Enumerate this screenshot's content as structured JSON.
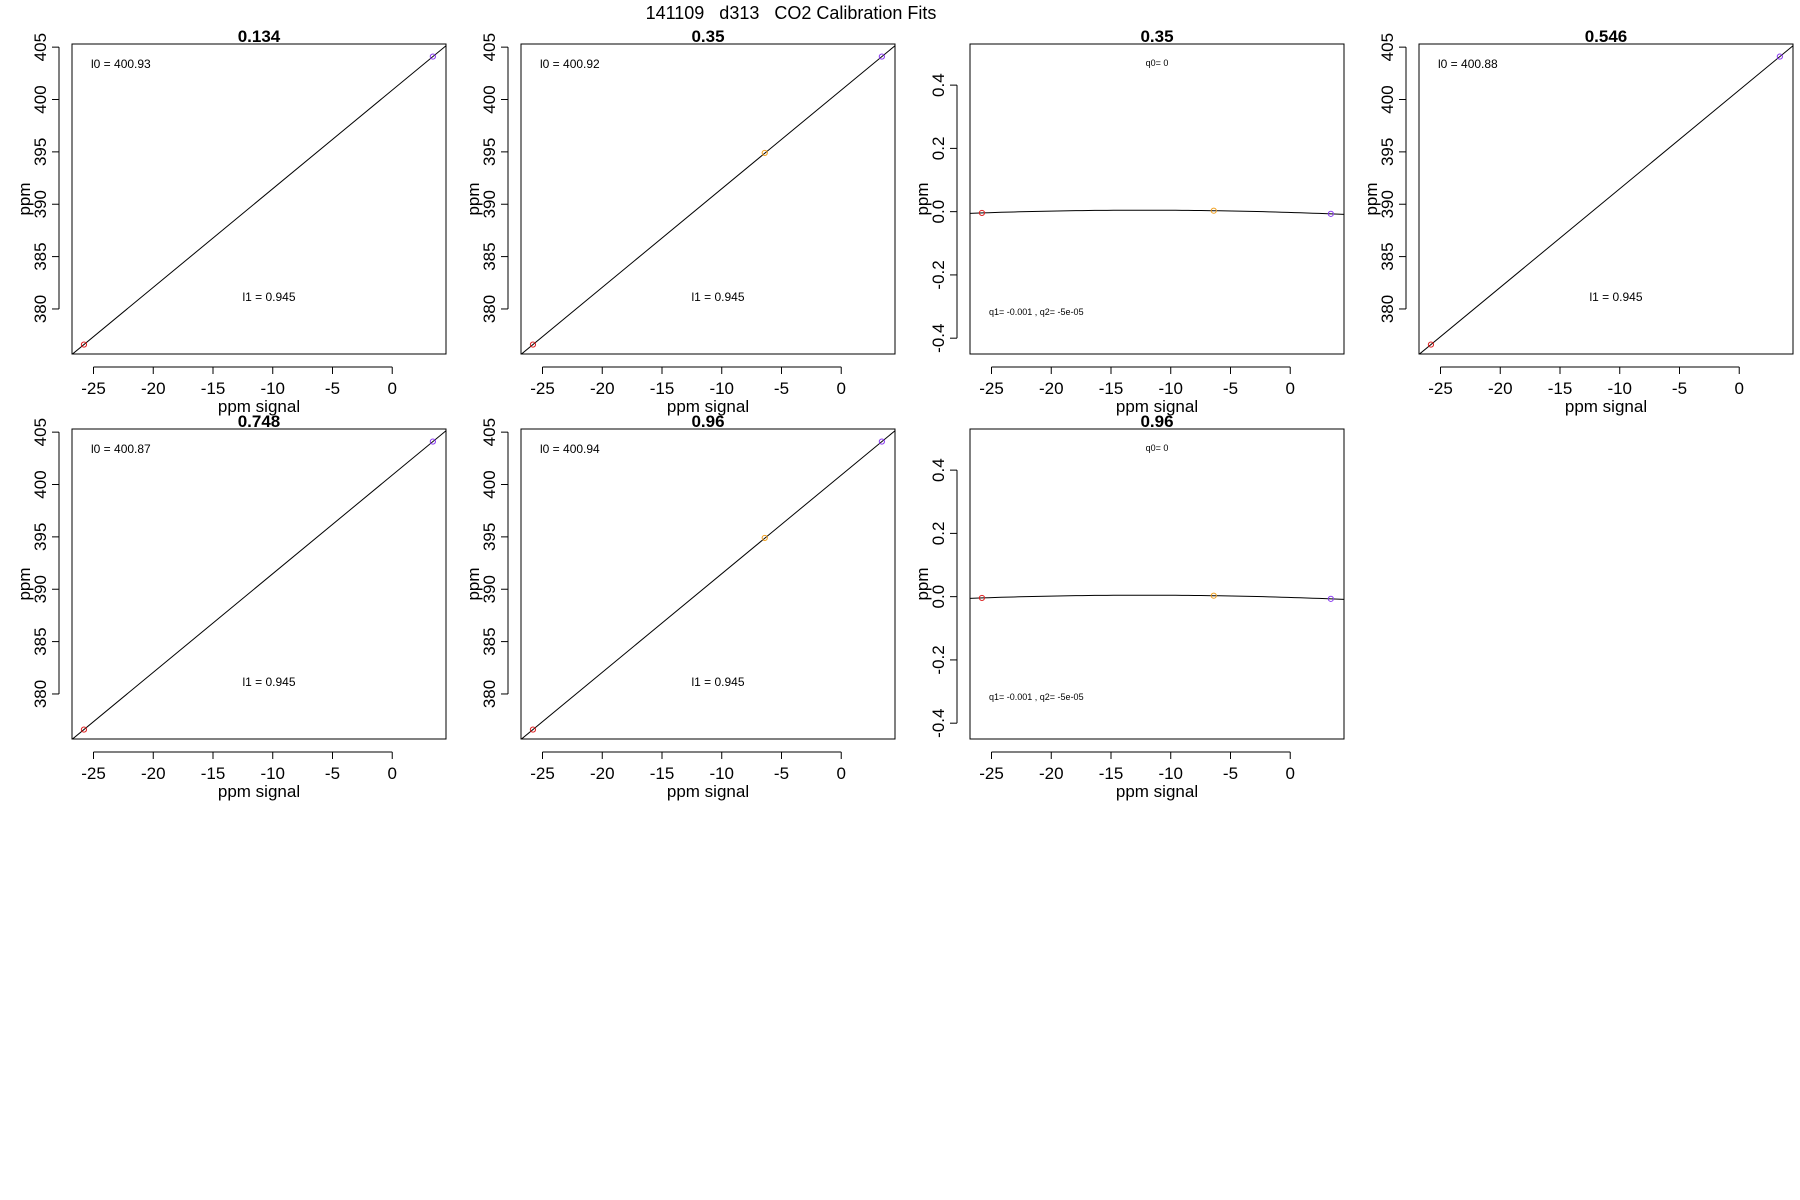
{
  "figure": {
    "title": "141109   d313   CO2 Calibration Fits"
  },
  "chart_data": [
    {
      "type": "scatter",
      "title": "0.134",
      "xlabel": "ppm signal",
      "ylabel": "ppm",
      "xlim": [
        -26.8,
        4.5
      ],
      "ylim": [
        375.7,
        405.3
      ],
      "xticks": [
        -25,
        -20,
        -15,
        -10,
        -5,
        0
      ],
      "yticks": [
        380,
        385,
        390,
        395,
        400,
        405
      ],
      "points": [
        {
          "x": -25.8,
          "y": 376.6,
          "color": "#dd2222"
        },
        {
          "x": 3.4,
          "y": 404.1,
          "color": "#8a3cf0"
        }
      ],
      "fit": {
        "kind": "linear",
        "l0": 400.93,
        "l1": 0.945
      },
      "annotations": [
        {
          "text": "l0 =  400.93",
          "pos": "top-left",
          "size": "lg"
        },
        {
          "text": "l1 =  0.945",
          "pos": "bottom-center",
          "size": "lg"
        }
      ]
    },
    {
      "type": "scatter",
      "title": "0.35",
      "xlabel": "ppm signal",
      "ylabel": "ppm",
      "xlim": [
        -26.8,
        4.5
      ],
      "ylim": [
        375.7,
        405.3
      ],
      "xticks": [
        -25,
        -20,
        -15,
        -10,
        -5,
        0
      ],
      "yticks": [
        380,
        385,
        390,
        395,
        400,
        405
      ],
      "points": [
        {
          "x": -25.8,
          "y": 376.6,
          "color": "#dd2222"
        },
        {
          "x": -6.4,
          "y": 394.9,
          "color": "#f0a020"
        },
        {
          "x": 3.4,
          "y": 404.1,
          "color": "#8a3cf0"
        }
      ],
      "fit": {
        "kind": "linear",
        "l0": 400.92,
        "l1": 0.945
      },
      "annotations": [
        {
          "text": "l0 =  400.92",
          "pos": "top-left",
          "size": "lg"
        },
        {
          "text": "l1 =  0.945",
          "pos": "bottom-center",
          "size": "lg"
        }
      ]
    },
    {
      "type": "scatter",
      "title": "0.35",
      "xlabel": "ppm signal",
      "ylabel": "ppm",
      "xlim": [
        -26.8,
        4.5
      ],
      "ylim": [
        -0.45,
        0.53
      ],
      "xticks": [
        -25,
        -20,
        -15,
        -10,
        -5,
        0
      ],
      "yticks": [
        -0.4,
        -0.2,
        0.0,
        0.2,
        0.4
      ],
      "ytick_labels": [
        "-0.4",
        "-0.2",
        "0.0",
        "0.2",
        "0.4"
      ],
      "points": [
        {
          "x": -25.8,
          "y": -0.004,
          "color": "#dd2222"
        },
        {
          "x": -6.4,
          "y": 0.003,
          "color": "#f0a020"
        },
        {
          "x": 3.4,
          "y": -0.007,
          "color": "#8a3cf0"
        }
      ],
      "fit": {
        "kind": "quadratic",
        "q0": 0,
        "q1": -0.001,
        "q2": -5e-05
      },
      "annotations": [
        {
          "text": "q0= 0",
          "pos": "top-center",
          "size": "sm"
        },
        {
          "text": "q1= -0.001 , q2= -5e-05",
          "pos": "bottom-left",
          "size": "sm"
        }
      ]
    },
    {
      "type": "scatter",
      "title": "0.546",
      "xlabel": "ppm signal",
      "ylabel": "ppm",
      "xlim": [
        -26.8,
        4.5
      ],
      "ylim": [
        375.7,
        405.3
      ],
      "xticks": [
        -25,
        -20,
        -15,
        -10,
        -5,
        0
      ],
      "yticks": [
        380,
        385,
        390,
        395,
        400,
        405
      ],
      "points": [
        {
          "x": -25.8,
          "y": 376.6,
          "color": "#dd2222"
        },
        {
          "x": 3.4,
          "y": 404.1,
          "color": "#8a3cf0"
        }
      ],
      "fit": {
        "kind": "linear",
        "l0": 400.88,
        "l1": 0.945
      },
      "annotations": [
        {
          "text": "l0 =  400.88",
          "pos": "top-left",
          "size": "lg"
        },
        {
          "text": "l1 =  0.945",
          "pos": "bottom-center",
          "size": "lg"
        }
      ]
    },
    {
      "type": "scatter",
      "title": "0.748",
      "xlabel": "ppm signal",
      "ylabel": "ppm",
      "xlim": [
        -26.8,
        4.5
      ],
      "ylim": [
        375.7,
        405.3
      ],
      "xticks": [
        -25,
        -20,
        -15,
        -10,
        -5,
        0
      ],
      "yticks": [
        380,
        385,
        390,
        395,
        400,
        405
      ],
      "points": [
        {
          "x": -25.8,
          "y": 376.6,
          "color": "#dd2222"
        },
        {
          "x": 3.4,
          "y": 404.1,
          "color": "#8a3cf0"
        }
      ],
      "fit": {
        "kind": "linear",
        "l0": 400.87,
        "l1": 0.945
      },
      "annotations": [
        {
          "text": "l0 =  400.87",
          "pos": "top-left",
          "size": "lg"
        },
        {
          "text": "l1 =  0.945",
          "pos": "bottom-center",
          "size": "lg"
        }
      ]
    },
    {
      "type": "scatter",
      "title": "0.96",
      "xlabel": "ppm signal",
      "ylabel": "ppm",
      "xlim": [
        -26.8,
        4.5
      ],
      "ylim": [
        375.7,
        405.3
      ],
      "xticks": [
        -25,
        -20,
        -15,
        -10,
        -5,
        0
      ],
      "yticks": [
        380,
        385,
        390,
        395,
        400,
        405
      ],
      "points": [
        {
          "x": -25.8,
          "y": 376.6,
          "color": "#dd2222"
        },
        {
          "x": -6.4,
          "y": 394.9,
          "color": "#f0a020"
        },
        {
          "x": 3.4,
          "y": 404.1,
          "color": "#8a3cf0"
        }
      ],
      "fit": {
        "kind": "linear",
        "l0": 400.94,
        "l1": 0.945
      },
      "annotations": [
        {
          "text": "l0 =  400.94",
          "pos": "top-left",
          "size": "lg"
        },
        {
          "text": "l1 =  0.945",
          "pos": "bottom-center",
          "size": "lg"
        }
      ]
    },
    {
      "type": "scatter",
      "title": "0.96",
      "xlabel": "ppm signal",
      "ylabel": "ppm",
      "xlim": [
        -26.8,
        4.5
      ],
      "ylim": [
        -0.45,
        0.53
      ],
      "xticks": [
        -25,
        -20,
        -15,
        -10,
        -5,
        0
      ],
      "yticks": [
        -0.4,
        -0.2,
        0.0,
        0.2,
        0.4
      ],
      "ytick_labels": [
        "-0.4",
        "-0.2",
        "0.0",
        "0.2",
        "0.4"
      ],
      "points": [
        {
          "x": -25.8,
          "y": -0.004,
          "color": "#dd2222"
        },
        {
          "x": -6.4,
          "y": 0.003,
          "color": "#f0a020"
        },
        {
          "x": 3.4,
          "y": -0.007,
          "color": "#8a3cf0"
        }
      ],
      "fit": {
        "kind": "quadratic",
        "q0": 0,
        "q1": -0.001,
        "q2": -5e-05
      },
      "annotations": [
        {
          "text": "q0= 0",
          "pos": "top-center",
          "size": "sm"
        },
        {
          "text": "q1= -0.001 , q2= -5e-05",
          "pos": "bottom-left",
          "size": "sm"
        }
      ]
    }
  ]
}
